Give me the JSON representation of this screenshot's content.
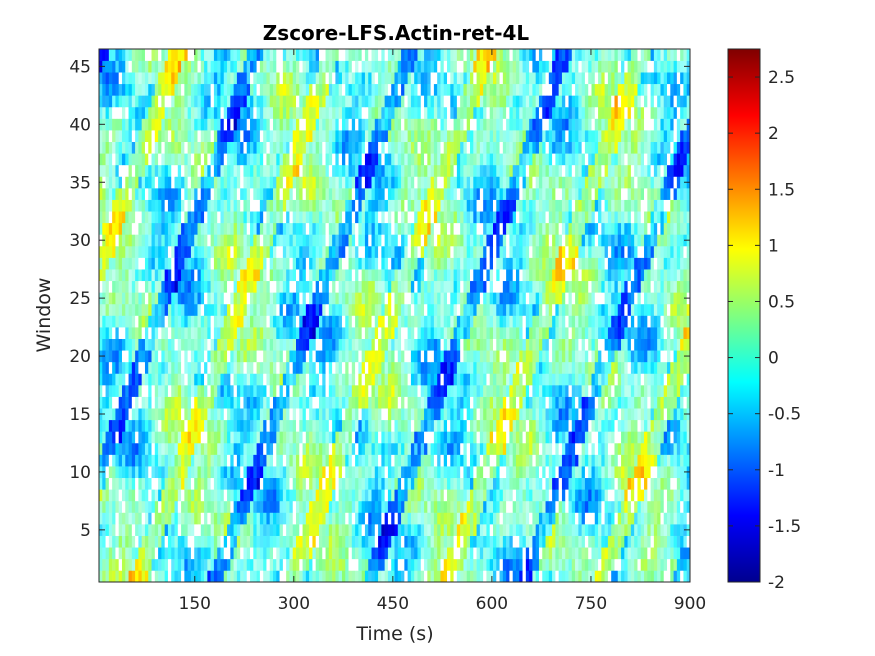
{
  "chart_data": {
    "type": "heatmap",
    "title": "Zscore-LFS.Actin-ret-4L",
    "xlabel": "Time (s)",
    "ylabel": "Window",
    "x_range": [
      5,
      900
    ],
    "y_range": [
      0.5,
      46.5
    ],
    "x_ticks": [
      150,
      300,
      450,
      600,
      750,
      900
    ],
    "y_ticks": [
      5,
      10,
      15,
      20,
      25,
      30,
      35,
      40,
      45
    ],
    "colorbar": {
      "colormap": "jet",
      "range": [
        -2,
        2.75
      ],
      "ticks": [
        "-2",
        "-1.5",
        "-1",
        "-0.5",
        "0",
        "0.5",
        "1",
        "1.5",
        "2",
        "2.5"
      ]
    },
    "grid": false,
    "rows": 46,
    "columns": 180,
    "missing_value_color": "#ffffff"
  }
}
